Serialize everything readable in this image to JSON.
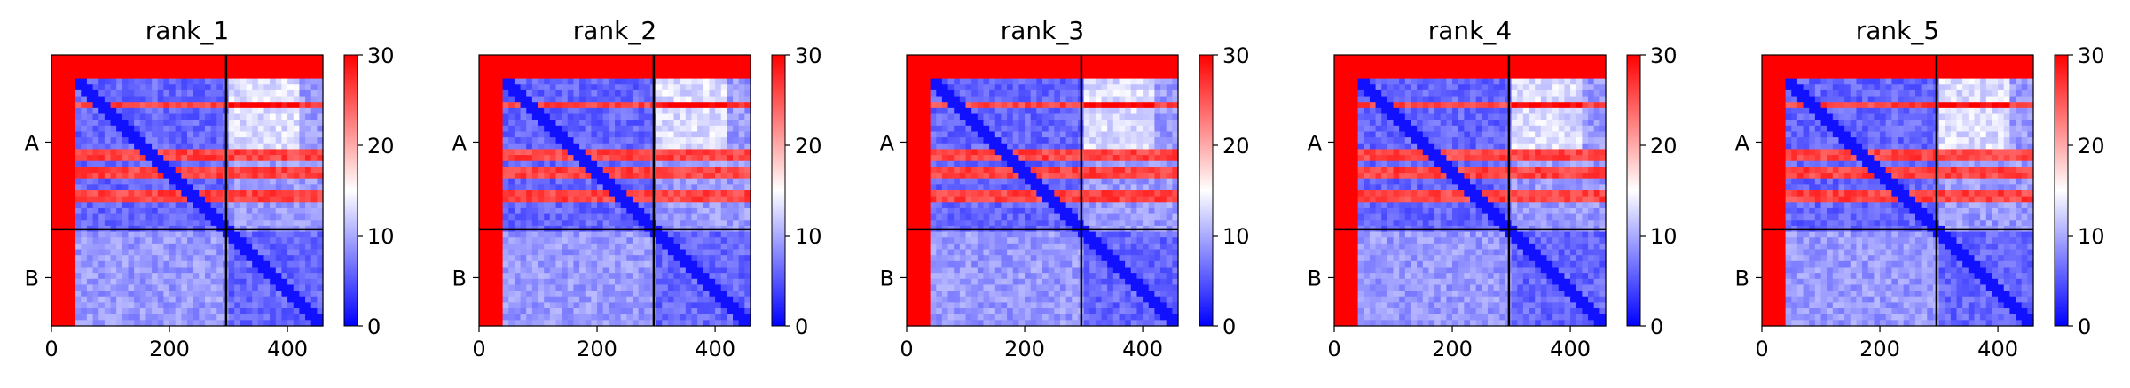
{
  "figure": {
    "colorscale": {
      "low": "#0000ff",
      "mid": "#ffffff",
      "high": "#ff0000"
    }
  },
  "chart_data": [
    {
      "type": "heatmap",
      "title": "rank_1",
      "chain_labels": [
        "A",
        "B"
      ],
      "chain_boundary": 296,
      "total_length": 460,
      "xticks": [
        0,
        200,
        400
      ],
      "xtick_labels": [
        "0",
        "200",
        "400"
      ],
      "colorbar": {
        "min": 0,
        "max": 30,
        "ticks": [
          0,
          10,
          20,
          30
        ],
        "tick_labels": [
          "0",
          "10",
          "20",
          "30"
        ]
      }
    },
    {
      "type": "heatmap",
      "title": "rank_2",
      "chain_labels": [
        "A",
        "B"
      ],
      "chain_boundary": 296,
      "total_length": 460,
      "xticks": [
        0,
        200,
        400
      ],
      "xtick_labels": [
        "0",
        "200",
        "400"
      ],
      "colorbar": {
        "min": 0,
        "max": 30,
        "ticks": [
          0,
          10,
          20,
          30
        ],
        "tick_labels": [
          "0",
          "10",
          "20",
          "30"
        ]
      }
    },
    {
      "type": "heatmap",
      "title": "rank_3",
      "chain_labels": [
        "A",
        "B"
      ],
      "chain_boundary": 296,
      "total_length": 460,
      "xticks": [
        0,
        200,
        400
      ],
      "xtick_labels": [
        "0",
        "200",
        "400"
      ],
      "colorbar": {
        "min": 0,
        "max": 30,
        "ticks": [
          0,
          10,
          20,
          30
        ],
        "tick_labels": [
          "0",
          "10",
          "20",
          "30"
        ]
      }
    },
    {
      "type": "heatmap",
      "title": "rank_4",
      "chain_labels": [
        "A",
        "B"
      ],
      "chain_boundary": 296,
      "total_length": 460,
      "xticks": [
        0,
        200,
        400
      ],
      "xtick_labels": [
        "0",
        "200",
        "400"
      ],
      "colorbar": {
        "min": 0,
        "max": 30,
        "ticks": [
          0,
          10,
          20,
          30
        ],
        "tick_labels": [
          "0",
          "10",
          "20",
          "30"
        ]
      }
    },
    {
      "type": "heatmap",
      "title": "rank_5",
      "chain_labels": [
        "A",
        "B"
      ],
      "chain_boundary": 296,
      "total_length": 460,
      "xticks": [
        0,
        200,
        400
      ],
      "xtick_labels": [
        "0",
        "200",
        "400"
      ],
      "colorbar": {
        "min": 0,
        "max": 30,
        "ticks": [
          0,
          10,
          20,
          30
        ],
        "tick_labels": [
          "0",
          "10",
          "20",
          "30"
        ]
      }
    }
  ]
}
